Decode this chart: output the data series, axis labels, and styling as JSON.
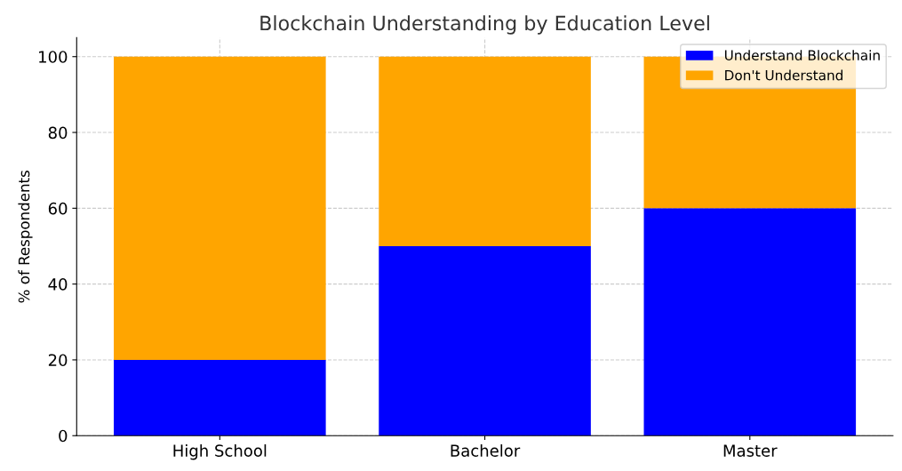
{
  "chart_data": {
    "type": "bar",
    "stacked": true,
    "title": "Blockchain Understanding by Education Level",
    "ylabel": "% of Respondents",
    "categories": [
      "High School",
      "Bachelor",
      "Master"
    ],
    "series": [
      {
        "name": "Understand Blockchain",
        "color": "#0000ff",
        "values": [
          20,
          50,
          60
        ]
      },
      {
        "name": "Don't Understand",
        "color": "#ffa500",
        "values": [
          80,
          50,
          40
        ]
      }
    ],
    "ylim": [
      0,
      105
    ],
    "yticks": [
      0,
      20,
      40,
      60,
      80,
      100
    ],
    "grid": true,
    "legend": "top right"
  }
}
